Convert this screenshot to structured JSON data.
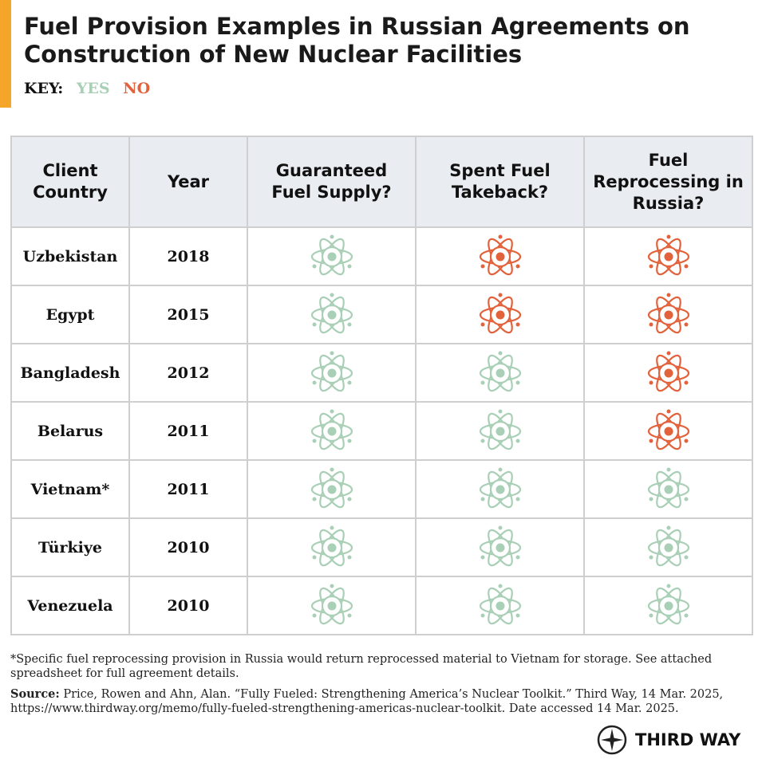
{
  "header": {
    "title": "Fuel Provision Examples in Russian Agreements on Construction of New Nuclear Facilities",
    "key": {
      "label": "KEY:",
      "yes": "YES",
      "no": "NO",
      "yes_color": "#a9cfb6",
      "no_color": "#e2623b"
    }
  },
  "table": {
    "columns": [
      "Client Country",
      "Year",
      "Guaranteed Fuel Supply?",
      "Spent Fuel Takeback?",
      "Fuel Reprocessing in Russia?"
    ],
    "rows": [
      {
        "country": "Uzbekistan",
        "year": 2018,
        "provisions": [
          true,
          false,
          false
        ]
      },
      {
        "country": "Egypt",
        "year": 2015,
        "provisions": [
          true,
          false,
          false
        ]
      },
      {
        "country": "Bangladesh",
        "year": 2012,
        "provisions": [
          true,
          true,
          false
        ]
      },
      {
        "country": "Belarus",
        "year": 2011,
        "provisions": [
          true,
          true,
          false
        ]
      },
      {
        "country": "Vietnam*",
        "year": 2011,
        "provisions": [
          true,
          true,
          true
        ]
      },
      {
        "country": "Türkiye",
        "year": 2010,
        "provisions": [
          true,
          true,
          true
        ]
      },
      {
        "country": "Venezuela",
        "year": 2010,
        "provisions": [
          true,
          true,
          true
        ]
      }
    ]
  },
  "footer": {
    "note": "*Specific fuel reprocessing provision in Russia would return reprocessed material to Vietnam for storage. See attached spreadsheet for full agreement details.",
    "source_label": "Source:",
    "source": "Price, Rowen and Ahn, Alan. “Fully Fueled: Strengthening America’s Nuclear Toolkit.” Third Way, 14 Mar. 2025, https://www.thirdway.org/memo/fully-fueled-strengthening-americas-nuclear-toolkit. Date accessed 14 Mar. 2025.",
    "logo": "THIRD WAY"
  }
}
